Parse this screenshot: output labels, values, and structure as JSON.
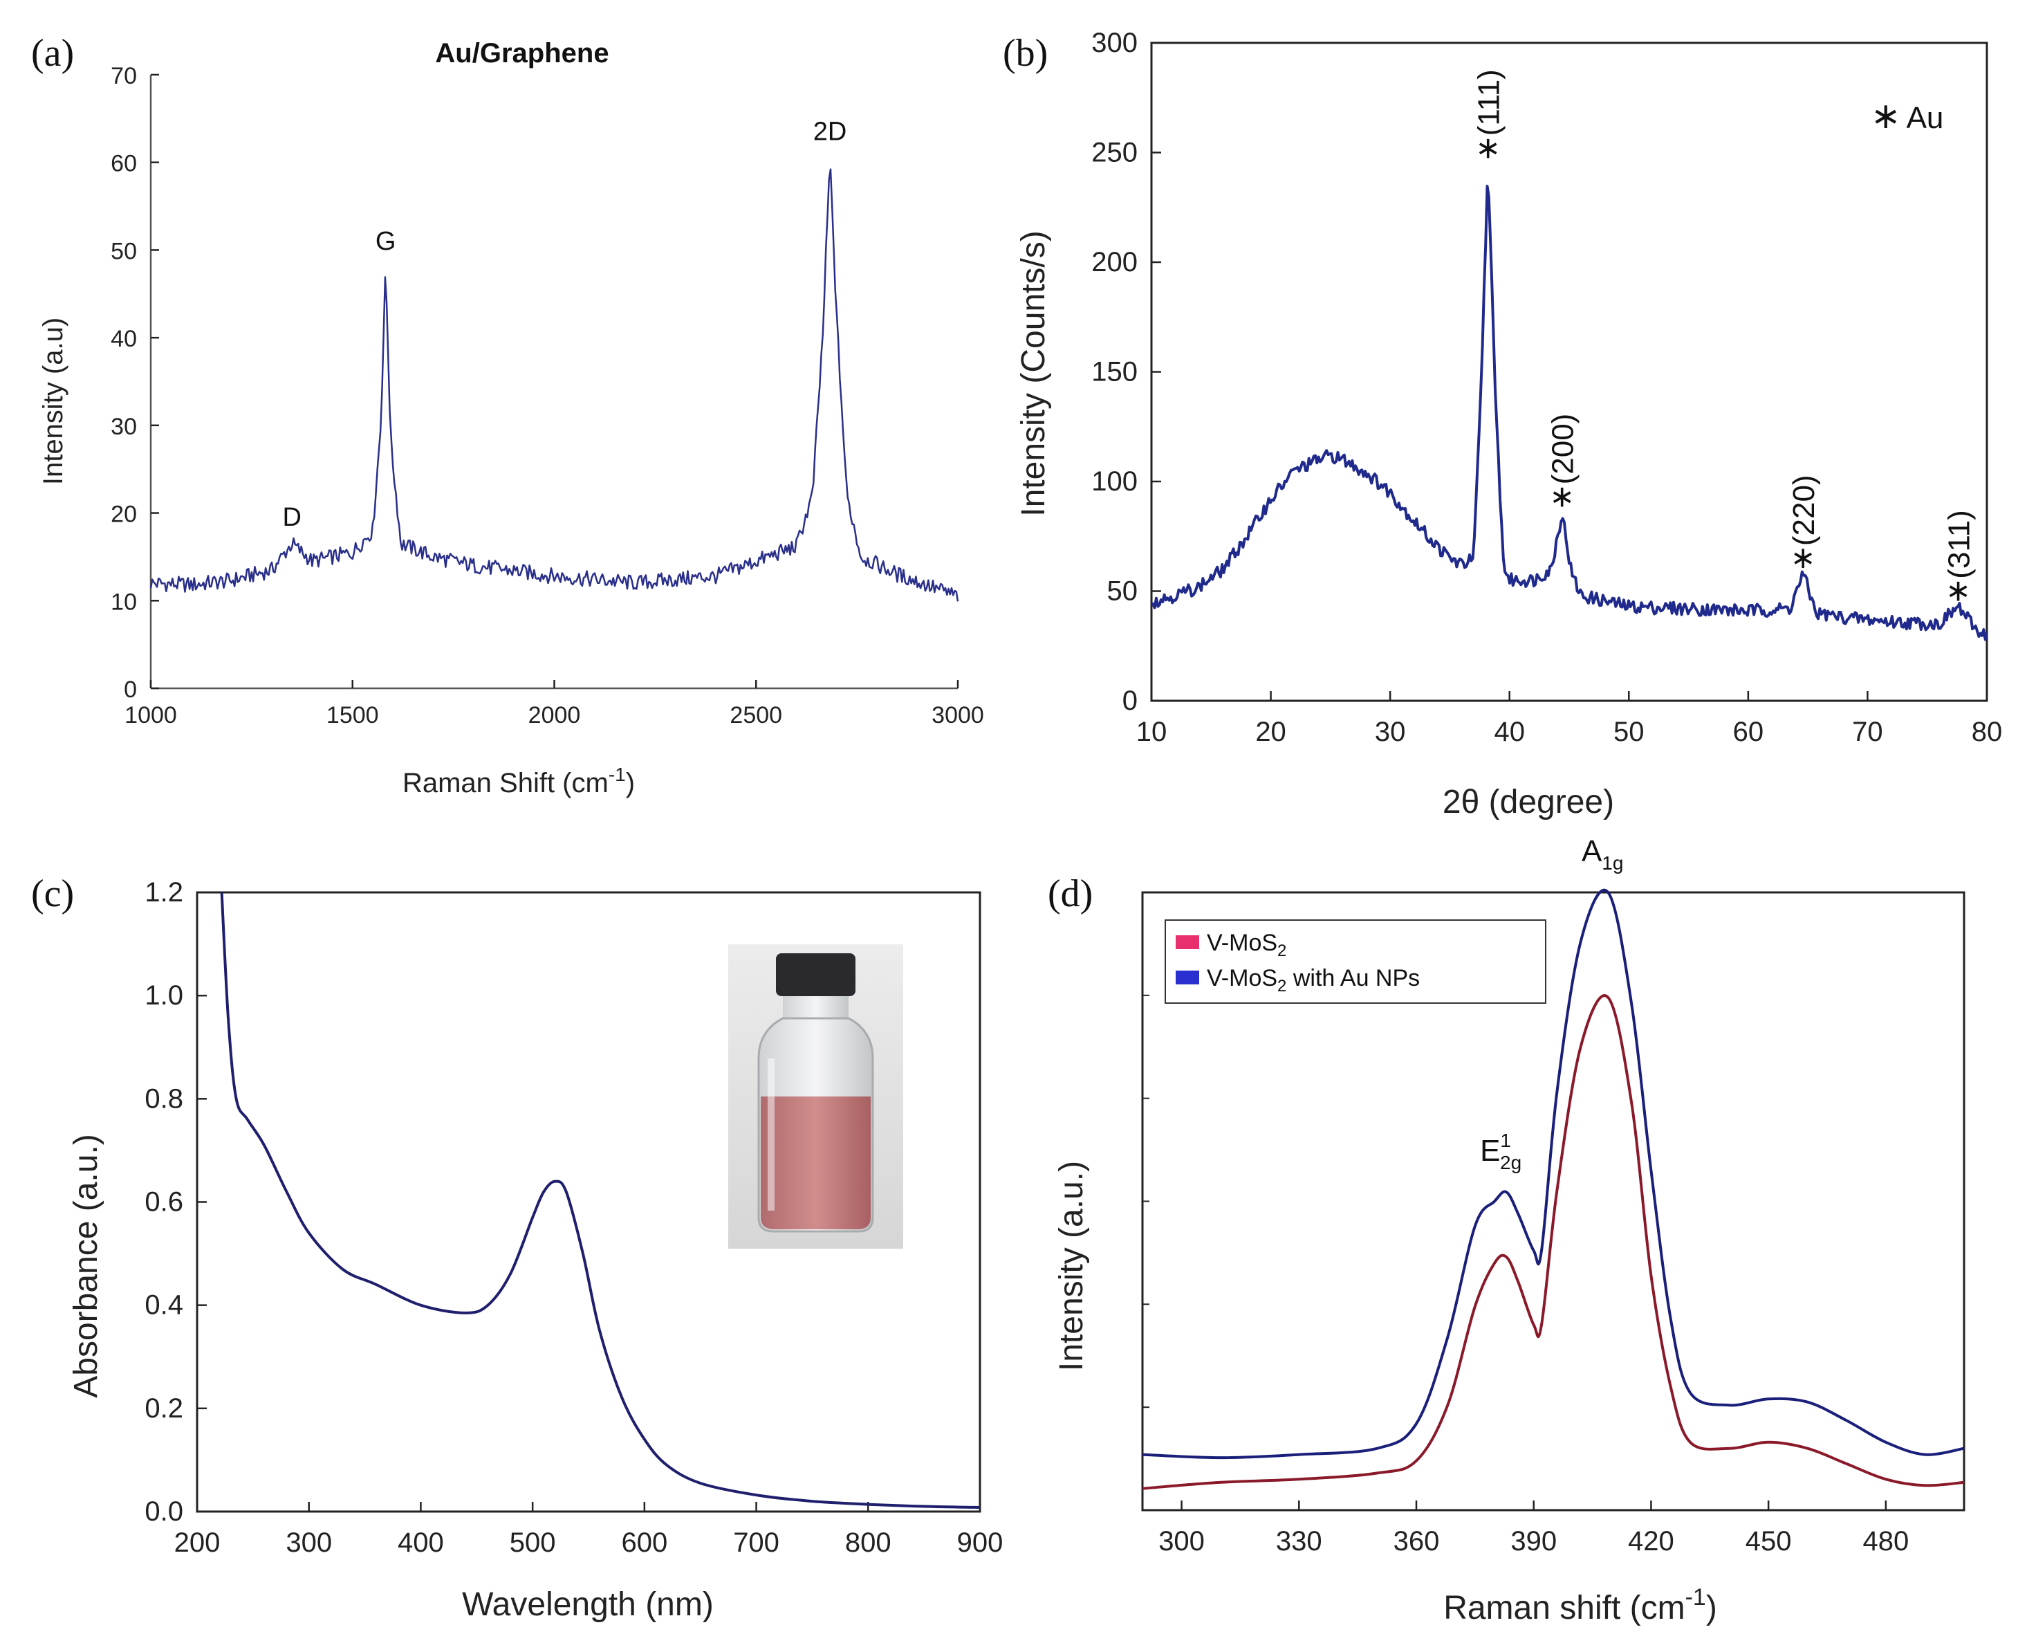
{
  "chart_data": [
    {
      "panel": "(a)",
      "type": "line",
      "title": "Au/Graphene",
      "xlabel": "Raman Shift (cm",
      "xlabel_sup": "-1",
      "xlabel_close": ")",
      "ylabel": "Intensity (a.u)",
      "xlim": [
        1000,
        3000
      ],
      "ylim": [
        0,
        70
      ],
      "xticks": [
        1000,
        1500,
        2000,
        2500,
        3000
      ],
      "yticks": [
        0,
        10,
        20,
        30,
        40,
        50,
        60,
        70
      ],
      "grid": false,
      "color": "#2a2f8a",
      "peaks": [
        {
          "label": "D",
          "x": 1350,
          "y": 16.5
        },
        {
          "label": "G",
          "x": 1582,
          "y": 48
        },
        {
          "label": "2D",
          "x": 2683,
          "y": 60.5
        }
      ],
      "series": [
        {
          "x": [
            1000,
            1100,
            1200,
            1300,
            1350,
            1400,
            1500,
            1550,
            1570,
            1582,
            1595,
            1620,
            1700,
            1800,
            2000,
            2200,
            2400,
            2500,
            2600,
            2640,
            2665,
            2683,
            2700,
            2725,
            2760,
            2850,
            3000
          ],
          "y": [
            12,
            11.8,
            12.3,
            13.5,
            16.5,
            14.5,
            15.5,
            18,
            30,
            48,
            28,
            16.5,
            15,
            14,
            12.8,
            12,
            12.8,
            14.5,
            16.2,
            22,
            40,
            60.5,
            42,
            22,
            15,
            13,
            10.5
          ]
        }
      ]
    },
    {
      "panel": "(b)",
      "type": "line",
      "xlabel": "2θ (degree)",
      "ylabel": "Intensity (Counts/s)",
      "xlim": [
        10,
        80
      ],
      "ylim": [
        0,
        300
      ],
      "xticks": [
        10,
        20,
        30,
        40,
        50,
        60,
        70,
        80
      ],
      "yticks": [
        0,
        50,
        100,
        150,
        200,
        250,
        300
      ],
      "grid": false,
      "color": "#202a8c",
      "legend_note": "Au",
      "peaks": [
        {
          "label": "(111)",
          "x": 38.2,
          "y": 245
        },
        {
          "label": "(200)",
          "x": 44.4,
          "y": 86
        },
        {
          "label": "(220)",
          "x": 64.6,
          "y": 58
        },
        {
          "label": "(311)",
          "x": 77.6,
          "y": 43
        }
      ],
      "series": [
        {
          "x": [
            10,
            12,
            14,
            16,
            18,
            20,
            22,
            24,
            25,
            26,
            28,
            30,
            32,
            34,
            35,
            36,
            37,
            37.6,
            38.2,
            38.8,
            39.5,
            40,
            42,
            43.5,
            44.4,
            45.2,
            46,
            50,
            55,
            60,
            63.5,
            64.6,
            65.7,
            68,
            72,
            76,
            77.6,
            79,
            80
          ],
          "y": [
            45,
            48,
            52,
            60,
            75,
            92,
            105,
            110,
            112,
            110,
            104,
            95,
            82,
            70,
            65,
            62,
            65,
            140,
            245,
            140,
            62,
            55,
            55,
            60,
            86,
            58,
            48,
            43,
            42,
            41,
            42,
            58,
            40,
            38,
            36,
            35,
            43,
            33,
            30
          ]
        }
      ]
    },
    {
      "panel": "(c)",
      "type": "line",
      "xlabel": "Wavelength (nm)",
      "ylabel": "Absorbance (a.u.)",
      "xlim": [
        200,
        900
      ],
      "ylim": [
        0.0,
        1.2
      ],
      "xticks": [
        200,
        300,
        400,
        500,
        600,
        700,
        800,
        900
      ],
      "yticks": [
        "0.0",
        "0.2",
        "0.4",
        "0.6",
        "0.8",
        "1.0",
        "1.2"
      ],
      "grid": false,
      "color": "#1f1f6e",
      "inset": "vial photo",
      "series": [
        {
          "x": [
            222,
            228,
            235,
            245,
            260,
            280,
            300,
            330,
            360,
            400,
            440,
            460,
            480,
            500,
            510,
            520,
            530,
            545,
            560,
            580,
            600,
            620,
            650,
            700,
            750,
            800,
            850,
            900
          ],
          "y": [
            1.2,
            0.95,
            0.8,
            0.76,
            0.71,
            0.62,
            0.54,
            0.47,
            0.44,
            0.4,
            0.385,
            0.4,
            0.46,
            0.57,
            0.62,
            0.64,
            0.62,
            0.5,
            0.35,
            0.22,
            0.14,
            0.09,
            0.055,
            0.032,
            0.02,
            0.014,
            0.01,
            0.008
          ]
        }
      ]
    },
    {
      "panel": "(d)",
      "type": "line",
      "xlabel": "Raman shift (cm",
      "xlabel_sup": "-1",
      "xlabel_close": ")",
      "ylabel": "Intensity (a.u.)",
      "xlim": [
        290,
        500
      ],
      "ylim": [
        0,
        1.0
      ],
      "xticks": [
        300,
        330,
        360,
        390,
        420,
        450,
        480
      ],
      "yticks": [],
      "grid": false,
      "peaks": [
        {
          "label": "E",
          "sup": "1",
          "sub": "2g",
          "x": 383
        },
        {
          "label": "A",
          "sub": "1g",
          "x": 409
        }
      ],
      "legend": [
        {
          "label": "V-MoS",
          "sub": "2",
          "tail": "",
          "swatch": "#e8306e"
        },
        {
          "label": "V-MoS",
          "sub": "2",
          "tail": " with Au NPs",
          "swatch": "#2a2fd0"
        }
      ],
      "series": [
        {
          "color": "#8a1a2a",
          "x": [
            290,
            310,
            330,
            350,
            360,
            368,
            375,
            380,
            383,
            386,
            390,
            392,
            396,
            402,
            409,
            415,
            420,
            425,
            430,
            440,
            450,
            460,
            470,
            480,
            490,
            500
          ],
          "y": [
            0.035,
            0.045,
            0.05,
            0.06,
            0.08,
            0.17,
            0.33,
            0.4,
            0.41,
            0.37,
            0.3,
            0.3,
            0.52,
            0.75,
            0.83,
            0.66,
            0.38,
            0.2,
            0.11,
            0.1,
            0.11,
            0.1,
            0.075,
            0.05,
            0.04,
            0.045
          ]
        },
        {
          "color": "#1a1f7a",
          "x": [
            290,
            310,
            330,
            350,
            360,
            368,
            375,
            380,
            383,
            386,
            390,
            392,
            396,
            402,
            409,
            415,
            420,
            425,
            430,
            440,
            450,
            460,
            470,
            480,
            490,
            500
          ],
          "y": [
            0.09,
            0.085,
            0.09,
            0.1,
            0.14,
            0.28,
            0.46,
            0.5,
            0.515,
            0.48,
            0.42,
            0.42,
            0.68,
            0.92,
            1.0,
            0.82,
            0.55,
            0.31,
            0.19,
            0.17,
            0.18,
            0.175,
            0.145,
            0.11,
            0.09,
            0.1
          ]
        }
      ]
    }
  ]
}
